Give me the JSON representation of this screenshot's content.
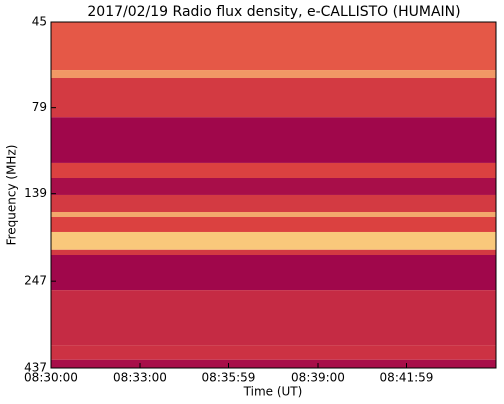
{
  "chart_data": {
    "type": "spectrogram",
    "title": "2017/02/19  Radio flux density, e-CALLISTO (HUMAIN)",
    "xlabel": "Time (UT)",
    "ylabel": "Frequency (MHz)",
    "xlim": [
      30600,
      31500
    ],
    "xticks": [
      {
        "value": 30600,
        "label": "08:30:00"
      },
      {
        "value": 30780,
        "label": "08:33:00"
      },
      {
        "value": 30959,
        "label": "08:35:59"
      },
      {
        "value": 31140,
        "label": "08:39:00"
      },
      {
        "value": 31319,
        "label": "08:41:59"
      }
    ],
    "ylim": [
      45,
      437
    ],
    "yticks": [
      45,
      79,
      139,
      247,
      437
    ],
    "ylog": true,
    "yinverted": true,
    "colormap": [
      "#99004c",
      "#e2483f",
      "#ffe88a"
    ],
    "bands": [
      45,
      61.7,
      65,
      84.2,
      113.6,
      125.4,
      140.2,
      156.8,
      162,
      178.8,
      201,
      208,
      262,
      376,
      414,
      437
    ],
    "values": [
      0.55,
      0.75,
      0.4,
      0.05,
      0.45,
      0.1,
      0.4,
      0.8,
      0.45,
      0.9,
      0.4,
      0.05,
      0.3,
      0.35,
      0.1
    ]
  }
}
